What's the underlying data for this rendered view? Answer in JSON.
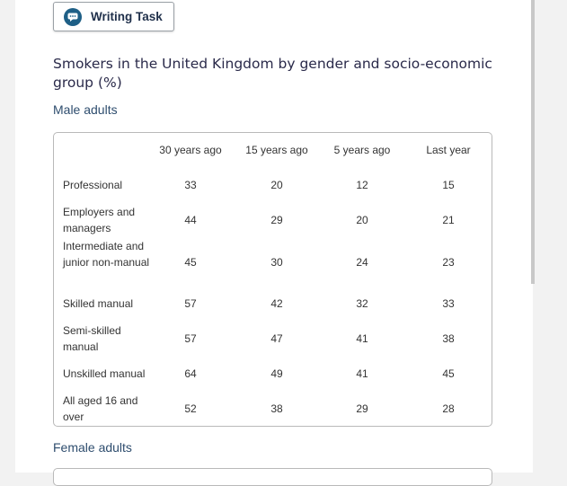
{
  "task_button": {
    "label": "Writing Task",
    "icon": "chat-bubble-icon"
  },
  "title": "Smokers in the United Kingdom by gender and socio-economic group (%)",
  "male_section": {
    "label": "Male adults",
    "columns": [
      "30 years ago",
      "15 years ago",
      "5 years ago",
      "Last year"
    ],
    "rows": [
      {
        "label": "Professional",
        "values": [
          "33",
          "20",
          "12",
          "15"
        ]
      },
      {
        "label": "Employers and managers",
        "values": [
          "44",
          "29",
          "20",
          "21"
        ]
      },
      {
        "label": "Intermediate and junior non-manual",
        "values": [
          "45",
          "30",
          "24",
          "23"
        ]
      },
      {
        "label": "Skilled manual",
        "values": [
          "57",
          "42",
          "32",
          "33"
        ]
      },
      {
        "label": "Semi-skilled manual",
        "values": [
          "57",
          "47",
          "41",
          "38"
        ]
      },
      {
        "label": "Unskilled manual",
        "values": [
          "64",
          "49",
          "41",
          "45"
        ]
      },
      {
        "label": "All aged 16 and over",
        "values": [
          "52",
          "38",
          "29",
          "28"
        ]
      }
    ]
  },
  "female_section": {
    "label": "Female adults"
  }
}
